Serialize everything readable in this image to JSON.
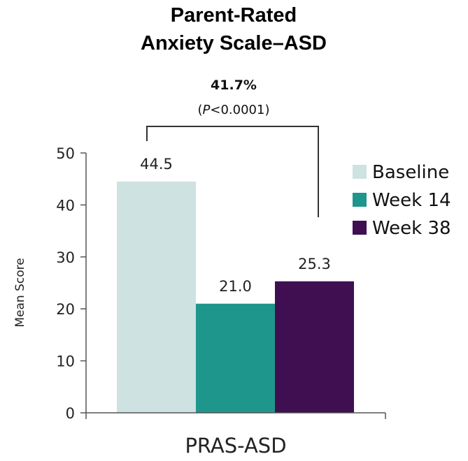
{
  "chart_data": {
    "type": "bar",
    "title_lines": [
      "Parent-Rated",
      "Anxiety Scale–ASD"
    ],
    "ylabel": "Mean Score",
    "xlabel": "PRAS-ASD",
    "ylim": [
      0,
      50
    ],
    "yticks": [
      0,
      10,
      20,
      30,
      40,
      50
    ],
    "categories": [
      "PRAS-ASD"
    ],
    "series": [
      {
        "name": "Baseline",
        "values": [
          44.5
        ],
        "label": "44.5",
        "color": "#cde2e1"
      },
      {
        "name": "Week 14",
        "values": [
          21.0
        ],
        "label": "21.0",
        "color": "#1f968b"
      },
      {
        "name": "Week 38",
        "values": [
          25.3
        ],
        "label": "25.3",
        "color": "#3f0f52"
      }
    ],
    "legend_position": "right",
    "annotation": {
      "value": "41.7%",
      "p_prefix": "(",
      "p_italic": "P",
      "p_rest": "<0.0001)",
      "from_series": "Baseline",
      "to_series": "Week 38"
    },
    "grid": false
  }
}
